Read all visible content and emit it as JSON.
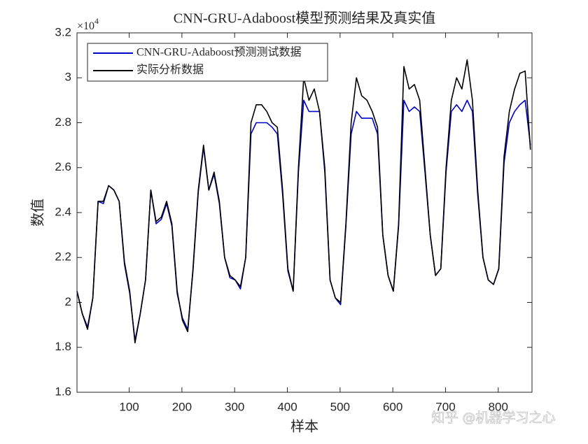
{
  "chart_data": {
    "type": "line",
    "title": "CNN-GRU-Adaboost模型预测结果及真实值",
    "x_label": "样本",
    "y_label": "数值",
    "y_exponent": {
      "base": "×10",
      "power": "4"
    },
    "watermark": "知乎 @机器学习之心",
    "legend": "northwest",
    "box": true,
    "x": [
      1,
      11,
      21,
      31,
      41,
      51,
      61,
      71,
      81,
      91,
      101,
      111,
      121,
      131,
      141,
      151,
      161,
      171,
      181,
      191,
      201,
      211,
      221,
      231,
      241,
      251,
      261,
      271,
      281,
      291,
      301,
      311,
      321,
      331,
      341,
      351,
      361,
      371,
      381,
      391,
      401,
      411,
      421,
      431,
      441,
      451,
      461,
      471,
      481,
      491,
      501,
      511,
      521,
      531,
      541,
      551,
      561,
      571,
      581,
      591,
      601,
      611,
      621,
      631,
      641,
      651,
      661,
      671,
      681,
      691,
      701,
      711,
      721,
      731,
      741,
      751,
      761,
      771,
      781,
      791,
      801,
      811,
      821,
      831,
      841,
      851,
      861
    ],
    "series": [
      {
        "name": "CNN-GRU-Adaboost预测测试数据",
        "color": "#0000c8",
        "values": [
          2.05,
          1.95,
          1.89,
          2.02,
          2.45,
          2.44,
          2.52,
          2.5,
          2.45,
          2.17,
          2.04,
          1.83,
          1.95,
          2.1,
          2.5,
          2.35,
          2.37,
          2.44,
          2.34,
          2.04,
          1.93,
          1.88,
          2.14,
          2.49,
          2.69,
          2.5,
          2.57,
          2.44,
          2.2,
          2.11,
          2.1,
          2.06,
          2.2,
          2.75,
          2.8,
          2.8,
          2.8,
          2.78,
          2.75,
          2.48,
          2.14,
          2.05,
          2.58,
          2.9,
          2.85,
          2.85,
          2.85,
          2.58,
          2.1,
          2.02,
          1.99,
          2.34,
          2.75,
          2.85,
          2.82,
          2.82,
          2.82,
          2.75,
          2.3,
          2.12,
          2.05,
          2.34,
          2.9,
          2.85,
          2.87,
          2.85,
          2.58,
          2.3,
          2.12,
          2.15,
          2.58,
          2.85,
          2.88,
          2.85,
          2.9,
          2.85,
          2.48,
          2.2,
          2.1,
          2.08,
          2.15,
          2.62,
          2.8,
          2.85,
          2.88,
          2.9,
          2.7
        ]
      },
      {
        "name": "实际分析数据",
        "color": "#000000",
        "values": [
          2.05,
          1.95,
          1.88,
          2.02,
          2.45,
          2.45,
          2.52,
          2.5,
          2.45,
          2.18,
          2.05,
          1.82,
          1.95,
          2.1,
          2.5,
          2.36,
          2.38,
          2.45,
          2.35,
          2.05,
          1.92,
          1.87,
          2.15,
          2.5,
          2.7,
          2.5,
          2.58,
          2.45,
          2.2,
          2.12,
          2.1,
          2.07,
          2.2,
          2.8,
          2.88,
          2.88,
          2.85,
          2.8,
          2.78,
          2.5,
          2.15,
          2.05,
          2.6,
          3.0,
          2.9,
          2.95,
          2.85,
          2.6,
          2.1,
          2.02,
          2.0,
          2.35,
          2.8,
          3.0,
          2.92,
          2.9,
          2.85,
          2.78,
          2.3,
          2.12,
          2.05,
          2.35,
          3.05,
          2.95,
          2.97,
          2.9,
          2.6,
          2.3,
          2.12,
          2.15,
          2.6,
          2.9,
          3.0,
          2.95,
          3.08,
          2.9,
          2.5,
          2.2,
          2.1,
          2.08,
          2.15,
          2.65,
          2.85,
          2.95,
          3.02,
          3.03,
          2.68
        ]
      }
    ],
    "xlim": [
      1,
      864
    ],
    "xticks": [
      100,
      200,
      300,
      400,
      500,
      600,
      700,
      800
    ],
    "ylim": [
      1.6,
      3.2
    ],
    "yticks": [
      1.6,
      1.8,
      2,
      2.2,
      2.4,
      2.6,
      2.8,
      3,
      3.2
    ]
  }
}
